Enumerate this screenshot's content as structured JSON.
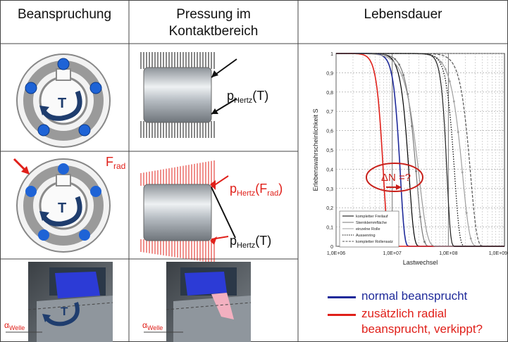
{
  "headers": {
    "col1": "Beanspruchung",
    "col2_line1": "Pressung im",
    "col2_line2": "Kontaktbereich",
    "col3": "Lebensdauer"
  },
  "labels": {
    "p_base": "p",
    "hertz_sub": "Hertz",
    "t_arg": "(T)",
    "frad_arg_open": "(F",
    "frad_sub": "rad",
    "frad_close": ")",
    "f_rad_F": "F",
    "f_rad_sub": "rad",
    "torque": "T",
    "alpha": "α",
    "welle": "Welle",
    "delta_n": "ΔN =?"
  },
  "legend": {
    "normal": "normal beansprucht",
    "radial_line1": "zusätzlich radial",
    "radial_line2": "beansprucht, verkippt?"
  },
  "colors": {
    "blue_curve": "#1f2a9a",
    "red_curve": "#e0201a",
    "ring": "#9a9a9a",
    "ball": "#1e63d6",
    "torque_arrow": "#1f3d6e"
  },
  "chart_data": {
    "type": "line",
    "xscale": "log",
    "xlim": [
      1000000,
      1000000000
    ],
    "ylim": [
      0,
      1
    ],
    "grid": true,
    "xlabel": "Lastwechsel",
    "ylabel": "Erlebenswahrscheinlichkeit S",
    "xticks": [
      "1,0E+06",
      "1,0E+07",
      "1,0E+08",
      "1,0E+09"
    ],
    "yticks": [
      "0",
      "0,1",
      "0,2",
      "0,3",
      "0,4",
      "0,5",
      "0,6",
      "0,7",
      "0,8",
      "0,9",
      "1"
    ],
    "legend_position": "bottom-left",
    "series": [
      {
        "name": "kompletter Freilauf",
        "color": "#000000",
        "style": "solid",
        "weibull": {
          "scale": 20000000,
          "shape": 5
        }
      },
      {
        "name": "Sternklemmfläche",
        "color": "#777777",
        "style": "marker",
        "weibull": {
          "scale": 27000000,
          "shape": 4
        }
      },
      {
        "name": "einzelne Rolle",
        "color": "#a0a0a0",
        "style": "marker",
        "weibull": {
          "scale": 180000000,
          "shape": 3.5
        }
      },
      {
        "name": "Aussenring",
        "color": "#000000",
        "style": "dotted",
        "weibull": {
          "scale": 130000000,
          "shape": 5
        }
      },
      {
        "name": "kompletter Rollensatz",
        "color": "#555555",
        "style": "dashed",
        "weibull": {
          "scale": 250000000,
          "shape": 4
        }
      },
      {
        "name": "",
        "color": "#1f2a9a",
        "style": "solid",
        "weibull": {
          "scale": 14000000,
          "shape": 6
        }
      },
      {
        "name": "",
        "color": "#e0201a",
        "style": "solid",
        "weibull": {
          "scale": 7000000,
          "shape": 6
        }
      },
      {
        "name": "",
        "color": "#999999",
        "style": "solid",
        "weibull": {
          "scale": 30000000,
          "shape": 3
        }
      },
      {
        "name": "",
        "color": "#222222",
        "style": "solid",
        "weibull": {
          "scale": 95000000,
          "shape": 7
        }
      }
    ]
  }
}
